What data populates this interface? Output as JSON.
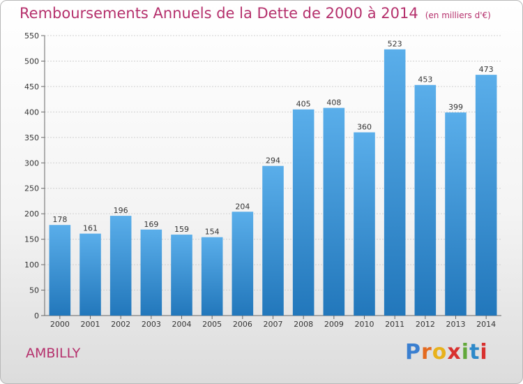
{
  "header": {
    "title": "Remboursements Annuels de la Dette de 2000 à 2014",
    "unit": "(en milliers d'€)"
  },
  "footer": {
    "place": "AMBILLY",
    "logo": [
      "P",
      "r",
      "o",
      "x",
      "i",
      "t",
      "i"
    ],
    "logo_colors": [
      "#3a7fd0",
      "#e46a1f",
      "#e8b21c",
      "#d8312f",
      "#62a83a",
      "#2d89c9",
      "#d8312f"
    ]
  },
  "chart_data": {
    "type": "bar",
    "title": "Remboursements Annuels de la Dette de 2000 à 2014",
    "subtitle": "(en milliers d'€)",
    "xlabel": "",
    "ylabel": "",
    "categories": [
      "2000",
      "2001",
      "2002",
      "2003",
      "2004",
      "2005",
      "2006",
      "2007",
      "2008",
      "2009",
      "2010",
      "2011",
      "2012",
      "2013",
      "2014"
    ],
    "values": [
      178,
      161,
      196,
      169,
      159,
      154,
      204,
      294,
      405,
      408,
      360,
      523,
      453,
      399,
      473
    ],
    "ylim": [
      0,
      550
    ],
    "yticks": [
      0,
      50,
      100,
      150,
      200,
      250,
      300,
      350,
      400,
      450,
      500,
      550
    ],
    "grid": true,
    "legend": "none",
    "bar_color_top": "#5aaeea",
    "bar_color_bottom": "#2277bb"
  }
}
